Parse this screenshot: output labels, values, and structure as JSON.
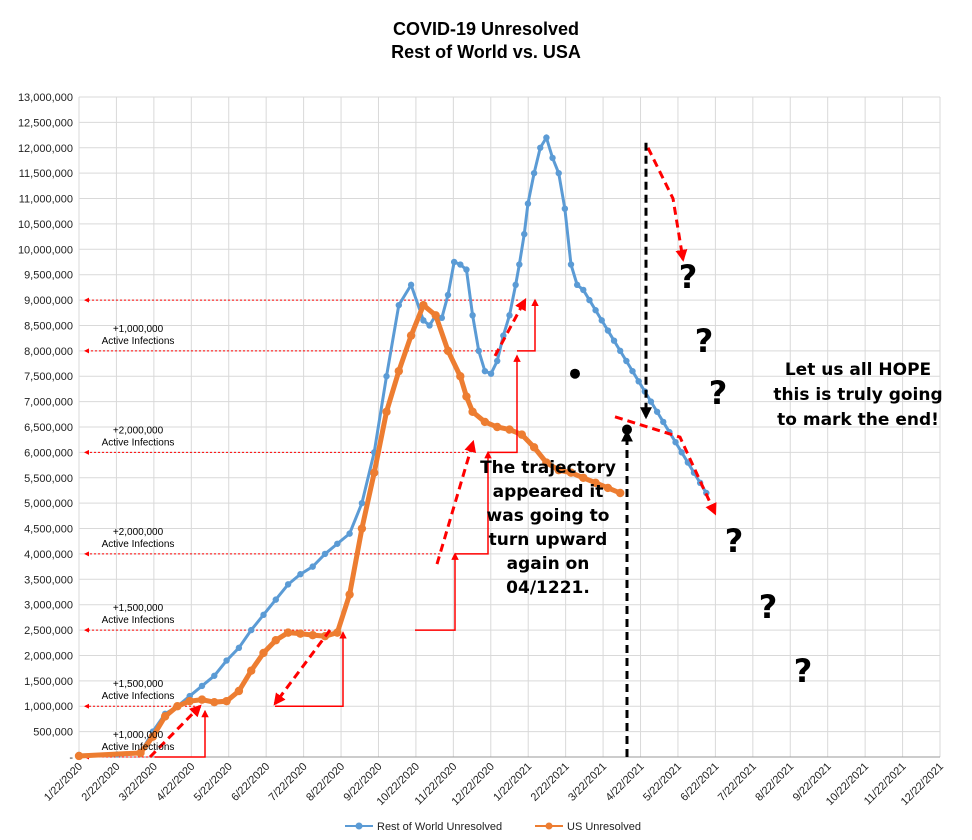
{
  "chart_data": {
    "type": "line",
    "title_line1": "COVID-19 Unresolved",
    "title_line2": "Rest of World vs. USA",
    "ylim": [
      0,
      13000000
    ],
    "y_ticks": [
      "-",
      "500,000",
      "1,000,000",
      "1,500,000",
      "2,000,000",
      "2,500,000",
      "3,000,000",
      "3,500,000",
      "4,000,000",
      "4,500,000",
      "5,000,000",
      "5,500,000",
      "6,000,000",
      "6,500,000",
      "7,000,000",
      "7,500,000",
      "8,000,000",
      "8,500,000",
      "9,000,000",
      "9,500,000",
      "10,000,000",
      "10,500,000",
      "11,000,000",
      "11,500,000",
      "12,000,000",
      "12,500,000",
      "13,000,000"
    ],
    "x_ticks": [
      "1/22/2020",
      "2/22/2020",
      "3/22/2020",
      "4/22/2020",
      "5/22/2020",
      "6/22/2020",
      "7/22/2020",
      "8/22/2020",
      "9/22/2020",
      "10/22/2020",
      "11/22/2020",
      "12/22/2020",
      "1/22/2021",
      "2/22/2021",
      "3/22/2021",
      "4/22/2021",
      "5/22/2021",
      "6/22/2021",
      "7/22/2021",
      "8/22/2021",
      "9/22/2021",
      "10/22/2021",
      "11/22/2021",
      "12/22/2021"
    ],
    "grid": true,
    "legend_position": "bottom",
    "series": [
      {
        "name": "Rest of World Unresolved",
        "color": "#5B9BD5",
        "x": [
          0,
          31,
          50,
          60,
          70,
          80,
          90,
          100,
          110,
          120,
          130,
          140,
          150,
          160,
          170,
          180,
          190,
          200,
          210,
          220,
          230,
          240,
          250,
          260,
          270,
          280,
          285,
          290,
          295,
          300,
          305,
          310,
          315,
          320,
          325,
          330,
          335,
          340,
          345,
          350,
          355,
          358,
          362,
          365,
          370,
          375,
          380,
          385,
          390,
          395,
          400,
          405,
          410,
          415,
          420,
          425,
          430,
          435,
          440,
          445,
          450,
          455,
          460,
          465,
          470,
          475,
          480,
          485,
          490,
          495,
          500,
          505,
          510
        ],
        "y": [
          40000,
          50000,
          80000,
          500000,
          850000,
          1000000,
          1200000,
          1400000,
          1600000,
          1900000,
          2150000,
          2500000,
          2800000,
          3100000,
          3400000,
          3600000,
          3750000,
          4000000,
          4200000,
          4400000,
          5000000,
          6000000,
          7500000,
          8900000,
          9300000,
          8600000,
          8500000,
          8700000,
          8650000,
          9100000,
          9750000,
          9700000,
          9600000,
          8700000,
          8000000,
          7600000,
          7550000,
          7800000,
          8300000,
          8700000,
          9300000,
          9700000,
          10300000,
          10900000,
          11500000,
          12000000,
          12200000,
          11800000,
          11500000,
          10800000,
          9700000,
          9300000,
          9200000,
          9000000,
          8800000,
          8600000,
          8400000,
          8200000,
          8000000,
          7800000,
          7600000,
          7400000,
          7200000,
          7000000,
          6800000,
          6600000,
          6400000,
          6200000,
          6000000,
          5800000,
          5600000,
          5400000,
          5200000
        ]
      },
      {
        "name": "US Unresolved",
        "color": "#ED7D31",
        "x": [
          0,
          50,
          60,
          70,
          80,
          90,
          100,
          110,
          120,
          130,
          140,
          150,
          160,
          170,
          180,
          190,
          200,
          210,
          220,
          230,
          240,
          250,
          260,
          270,
          280,
          290,
          300,
          310,
          315,
          320,
          330,
          340,
          350,
          360,
          370,
          380,
          390,
          400,
          410,
          420,
          430,
          440
        ],
        "y": [
          20000,
          80000,
          400000,
          800000,
          1000000,
          1100000,
          1130000,
          1080000,
          1100000,
          1300000,
          1700000,
          2050000,
          2300000,
          2450000,
          2430000,
          2400000,
          2380000,
          2450000,
          3200000,
          4500000,
          5600000,
          6800000,
          7600000,
          8300000,
          8900000,
          8700000,
          8000000,
          7500000,
          7100000,
          6800000,
          6600000,
          6500000,
          6450000,
          6350000,
          6100000,
          5800000,
          5650000,
          5600000,
          5500000,
          5400000,
          5300000,
          5200000
        ]
      }
    ],
    "left_annotations": [
      {
        "value": 9000000
      },
      {
        "value": 8000000,
        "label1": "+1,000,000",
        "label2": "Active Infections"
      },
      {
        "value": 6000000,
        "label1": "+2,000,000",
        "label2": "Active Infections"
      },
      {
        "value": 4000000,
        "label1": "+2,000,000",
        "label2": "Active Infections"
      },
      {
        "value": 2500000,
        "label1": "+1,500,000",
        "label2": "Active Infections"
      },
      {
        "value": 1000000,
        "label1": "+1,500,000",
        "label2": "Active Infections"
      },
      {
        "value": 0,
        "label1": "+1,000,000",
        "label2": "Active Infections"
      }
    ],
    "trajectory_text": [
      "The trajectory",
      "appeared it",
      "was going to",
      "turn upward",
      "again on",
      "04/1221."
    ],
    "hope_text": [
      "Let us all HOPE",
      "this is truly going",
      "to mark the end!"
    ],
    "question_mark": "?"
  }
}
